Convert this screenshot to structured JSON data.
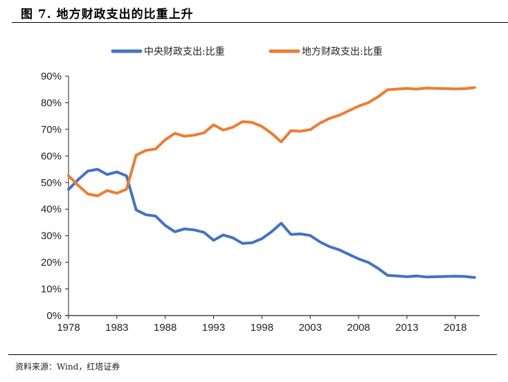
{
  "header": {
    "title": "图 7. 地方财政支出的比重上升"
  },
  "footer": {
    "source": "资料来源：Wind，红塔证券"
  },
  "chart_data": {
    "type": "line",
    "title": "图 7. 地方财政支出的比重上升",
    "xlabel": "",
    "ylabel": "",
    "x": [
      1978,
      1979,
      1980,
      1981,
      1982,
      1983,
      1984,
      1985,
      1986,
      1987,
      1988,
      1989,
      1990,
      1991,
      1992,
      1993,
      1994,
      1995,
      1996,
      1997,
      1998,
      1999,
      2000,
      2001,
      2002,
      2003,
      2004,
      2005,
      2006,
      2007,
      2008,
      2009,
      2010,
      2011,
      2012,
      2013,
      2014,
      2015,
      2016,
      2017,
      2018,
      2019,
      2020
    ],
    "x_ticks": [
      "1978",
      "1983",
      "1988",
      "1993",
      "1998",
      "2003",
      "2008",
      "2013",
      "2018"
    ],
    "y_ticks": [
      "0%",
      "10%",
      "20%",
      "30%",
      "40%",
      "50%",
      "60%",
      "70%",
      "80%",
      "90%"
    ],
    "ylim": [
      0,
      90
    ],
    "xlim": [
      1978,
      2020
    ],
    "grid": false,
    "legend_position": "top-center",
    "series": [
      {
        "name": "中央财政支出:比重",
        "color": "#4472C4",
        "values": [
          47.4,
          51.1,
          54.3,
          55.0,
          53.0,
          54.0,
          52.5,
          39.7,
          37.9,
          37.4,
          33.9,
          31.5,
          32.6,
          32.2,
          31.3,
          28.3,
          30.3,
          29.2,
          27.1,
          27.4,
          28.9,
          31.5,
          34.7,
          30.5,
          30.7,
          30.1,
          27.7,
          25.9,
          24.7,
          23.0,
          21.3,
          20.0,
          17.8,
          15.1,
          14.9,
          14.6,
          14.9,
          14.5,
          14.6,
          14.7,
          14.8,
          14.7,
          14.3
        ]
      },
      {
        "name": "地方财政支出:比重",
        "color": "#ED7D31",
        "values": [
          52.6,
          48.9,
          45.7,
          45.0,
          47.0,
          46.0,
          47.5,
          60.3,
          62.1,
          62.6,
          66.1,
          68.5,
          67.4,
          67.8,
          68.7,
          71.7,
          69.7,
          70.8,
          72.9,
          72.6,
          71.1,
          68.5,
          65.3,
          69.5,
          69.3,
          69.9,
          72.3,
          74.1,
          75.3,
          77.0,
          78.7,
          80.0,
          82.2,
          84.9,
          85.1,
          85.4,
          85.1,
          85.5,
          85.4,
          85.3,
          85.2,
          85.3,
          85.7
        ]
      }
    ]
  }
}
